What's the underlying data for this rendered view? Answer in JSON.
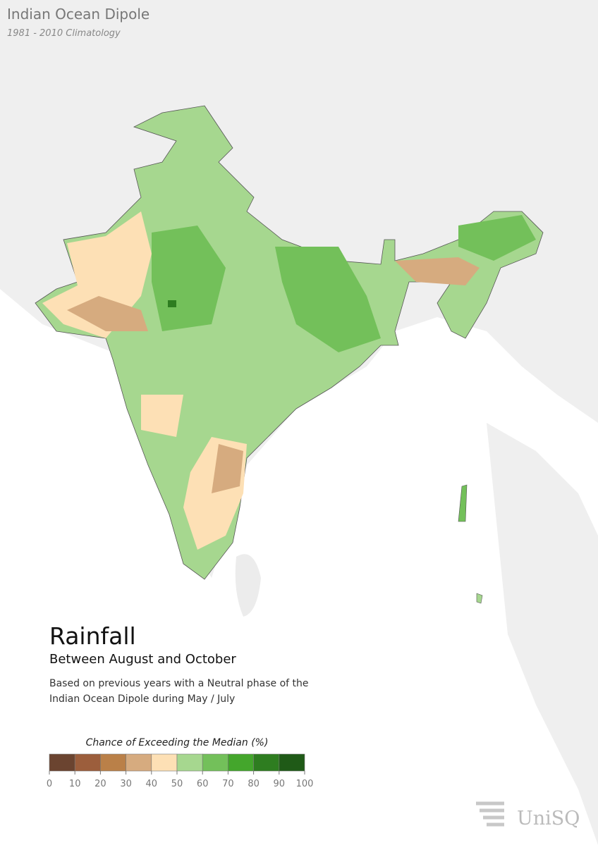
{
  "header": {
    "title": "Indian Ocean Dipole",
    "subtitle": "1981 - 2010 Climatology"
  },
  "panel": {
    "heading": "Rainfall",
    "period": "Between August and October",
    "description": [
      "Based on previous years with a Neutral phase of the",
      "Indian Ocean Dipole during May / July"
    ]
  },
  "legend": {
    "title": "Chance of Exceeding the Median (%)",
    "ticks": [
      0,
      10,
      20,
      30,
      40,
      50,
      60,
      70,
      80,
      90,
      100
    ],
    "colors": [
      "#6b4430",
      "#9c5e3c",
      "#ba8048",
      "#d6ab7f",
      "#fde0b5",
      "#a6d78f",
      "#73c05a",
      "#44a62c",
      "#2e7d20",
      "#1f5a17"
    ]
  },
  "logo": {
    "text": "UniSQ"
  }
}
